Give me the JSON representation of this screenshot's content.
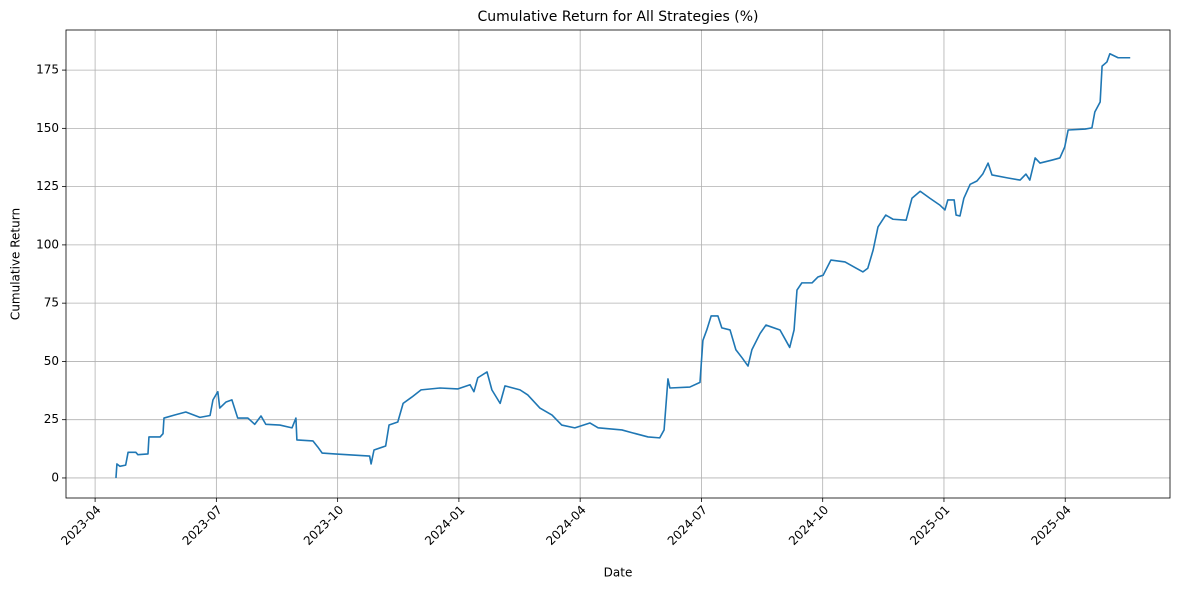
{
  "chart_data": {
    "type": "line",
    "title": "Cumulative Return for All Strategies (%)",
    "x_label": "Date",
    "y_label": "Cumulative Return",
    "x": [
      2023.293,
      2023.295,
      2023.301,
      2023.313,
      2023.318,
      2023.334,
      2023.338,
      2023.359,
      2023.361,
      2023.384,
      2023.39,
      2023.392,
      2023.414,
      2023.437,
      2023.466,
      2023.487,
      2023.493,
      2023.503,
      2023.507,
      2023.52,
      2023.532,
      2023.544,
      2023.565,
      2023.579,
      2023.592,
      2023.602,
      2023.631,
      2023.656,
      2023.664,
      2023.666,
      2023.699,
      2023.709,
      2023.718,
      2023.744,
      2023.816,
      2023.819,
      2023.825,
      2023.849,
      2023.856,
      2023.874,
      2023.885,
      2023.903,
      2023.922,
      2023.961,
      2023.998,
      2024.023,
      2024.031,
      2024.039,
      2024.058,
      2024.068,
      2024.085,
      2024.095,
      2024.126,
      2024.142,
      2024.167,
      2024.192,
      2024.212,
      2024.239,
      2024.27,
      2024.287,
      2024.336,
      2024.359,
      2024.39,
      2024.414,
      2024.423,
      2024.431,
      2024.435,
      2024.476,
      2024.497,
      2024.503,
      2024.511,
      2024.52,
      2024.534,
      2024.542,
      2024.559,
      2024.571,
      2024.584,
      2024.596,
      2024.604,
      2024.621,
      2024.633,
      2024.662,
      2024.674,
      2024.682,
      2024.691,
      2024.697,
      2024.707,
      2024.728,
      2024.74,
      2024.751,
      2024.767,
      2024.796,
      2024.819,
      2024.833,
      2024.843,
      2024.854,
      2024.864,
      2024.88,
      2024.895,
      2024.922,
      2024.934,
      2024.951,
      2024.971,
      2024.992,
      2025.002,
      2025.008,
      2025.021,
      2025.025,
      2025.033,
      2025.041,
      2025.054,
      2025.068,
      2025.08,
      2025.091,
      2025.099,
      2025.132,
      2025.157,
      2025.169,
      2025.177,
      2025.188,
      2025.198,
      2025.223,
      2025.239,
      2025.249,
      2025.256,
      2025.291,
      2025.305,
      2025.311,
      2025.322,
      2025.326,
      2025.336,
      2025.342,
      2025.359,
      2025.384
    ],
    "series": [
      {
        "name": "Cumulative Return",
        "color": "#1f77b4",
        "values": [
          0,
          6,
          5,
          5.5,
          11,
          11,
          10,
          10.3,
          17.6,
          17.6,
          19,
          25.7,
          27,
          28.3,
          26,
          26.8,
          33.5,
          37,
          30,
          32.6,
          33.5,
          25.7,
          25.7,
          23,
          26.6,
          23,
          22.7,
          21.5,
          25.7,
          16.3,
          15.9,
          13.3,
          10.7,
          10.3,
          9.4,
          6,
          12,
          13.7,
          22.7,
          24,
          32,
          34.7,
          37.8,
          38.6,
          38.2,
          40,
          37,
          43,
          45.5,
          37.8,
          32,
          39.5,
          37.8,
          35.6,
          30,
          27,
          22.7,
          21.5,
          23.6,
          21.5,
          20.6,
          19.3,
          17.6,
          17.2,
          20.6,
          42.5,
          38.6,
          39,
          41,
          59,
          63.5,
          69.5,
          69.5,
          64.4,
          63.5,
          55,
          51.5,
          48,
          55,
          62,
          65.6,
          63.5,
          59,
          56,
          63.5,
          80.6,
          83.7,
          83.7,
          86.2,
          87,
          93.5,
          92.7,
          90,
          88.4,
          90,
          97.8,
          107.7,
          112.8,
          111,
          110.6,
          120,
          123,
          120,
          117,
          115,
          119.3,
          119.3,
          112.8,
          112.4,
          120,
          126,
          127.4,
          130.4,
          135.1,
          130,
          128.7,
          127.8,
          130.4,
          127.8,
          137.3,
          135.1,
          136.4,
          137.3,
          142,
          149.3,
          149.7,
          150.2,
          157,
          161.3,
          176.7,
          178.5,
          182,
          180.3,
          180.3
        ]
      }
    ],
    "xlim": [
      2023.19,
      2025.466
    ],
    "xticks": [
      {
        "value": 2023.25,
        "label": "2023-04"
      },
      {
        "value": 2023.5,
        "label": "2023-07"
      },
      {
        "value": 2023.75,
        "label": "2023-10"
      },
      {
        "value": 2024.0,
        "label": "2024-01"
      },
      {
        "value": 2024.25,
        "label": "2024-04"
      },
      {
        "value": 2024.5,
        "label": "2024-07"
      },
      {
        "value": 2024.75,
        "label": "2024-10"
      },
      {
        "value": 2025.0,
        "label": "2025-01"
      },
      {
        "value": 2025.25,
        "label": "2025-04"
      }
    ],
    "ylim": [
      -8.6,
      192.2
    ],
    "yticks": [
      0,
      25,
      50,
      75,
      100,
      125,
      150,
      175
    ],
    "grid": true
  }
}
